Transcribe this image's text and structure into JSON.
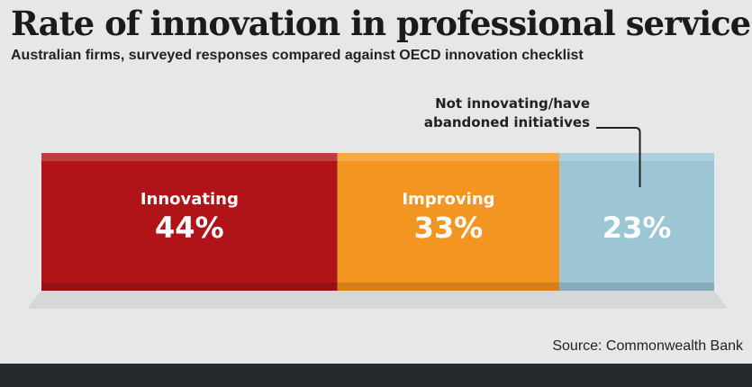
{
  "chart_data": {
    "type": "bar",
    "orientation": "horizontal-stacked",
    "title": "Rate of innovation in professional services",
    "subtitle": "Australian firms, surveyed responses compared against OECD innovation checklist",
    "series": [
      {
        "name": "Innovating",
        "value": 44,
        "label": "44%",
        "show_name": true,
        "color": "#b01418"
      },
      {
        "name": "Improving",
        "value": 33,
        "label": "33%",
        "show_name": true,
        "color": "#f39521"
      },
      {
        "name": "Not innovating/have abandoned initiatives",
        "value": 23,
        "label": "23%",
        "show_name": false,
        "color": "#9cc6d5"
      }
    ],
    "annotation": {
      "lines": [
        "Not innovating/have",
        "abandoned initiatives"
      ],
      "target": "Not innovating/have abandoned initiatives"
    },
    "source": "Source: Commonwealth Bank"
  }
}
